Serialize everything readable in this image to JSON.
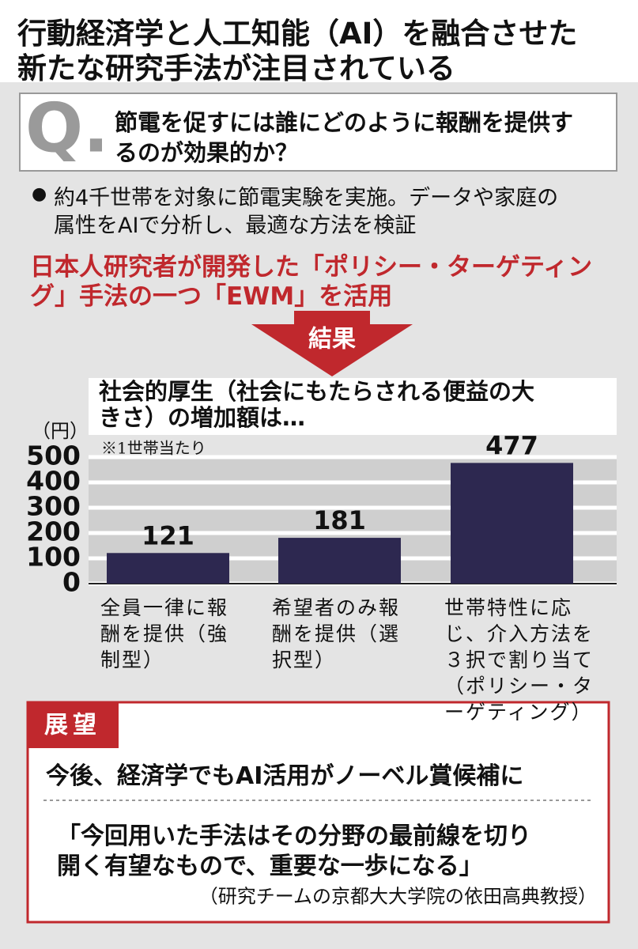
{
  "title": [
    "行動経済学と人工知能（AI）を融合させた",
    "新たな研究手法が注目されている"
  ],
  "question": {
    "mark": "Q.",
    "text": [
      "節電を促すには誰にどのように報酬を提供す",
      "るのが効果的か？"
    ]
  },
  "bullet": [
    "約4千世帯を対象に節電実験を実施。データや家庭の",
    "属性をAIで分析し、最適な方法を検証"
  ],
  "highlight": [
    "日本人研究者が開発した「ポリシー・ターゲティン",
    "グ」手法の一つ「EWM」を活用"
  ],
  "result_label": "結果",
  "chart_data": {
    "type": "bar",
    "title": [
      "社会的厚生（社会にもたらされる便益の大",
      "きさ）の増加額は…"
    ],
    "note": "※1世帯当たり",
    "y_unit": "（円）",
    "categories": [
      "全員一律に報酬を提供（強制型）",
      "希望者のみ報酬を提供（選択型）",
      "世帯特性に応じ、介入方法を３択で割り当て（ポリシー・ターゲティング）"
    ],
    "values": [
      121,
      181,
      477
    ],
    "color": "#2d2850",
    "ylim": [
      0,
      500
    ],
    "yticks": [
      0,
      100,
      200,
      300,
      400,
      500
    ],
    "grid": true
  },
  "outlook": {
    "label": "展望",
    "headline": "今後、経済学でもAI活用がノーベル賞候補に",
    "quote": [
      "「今回用いた手法はその分野の最前線を切り",
      "開く有望なもので、重要な一歩になる」"
    ],
    "attribution": "（研究チームの京都大大学院の依田高典教授）"
  }
}
